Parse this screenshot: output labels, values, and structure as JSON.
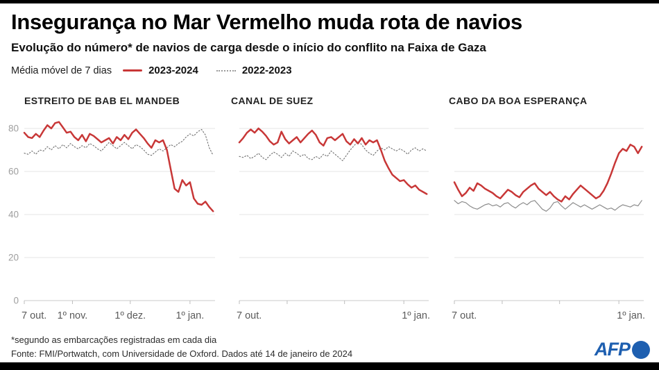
{
  "header": {
    "title": "Insegurança no Mar Vermelho muda rota de navios",
    "subtitle": "Evolução do número* de navios de carga desde o início do conflito na Faixa de Gaza",
    "legend": {
      "label": "Média móvel de 7 dias",
      "series": [
        {
          "name": "2023-2024",
          "color": "#c83737",
          "style": "solid"
        },
        {
          "name": "2022-2023",
          "color": "#9a9a9a",
          "style": "dotted"
        }
      ]
    }
  },
  "footer": {
    "note": "*segundo as embarcações registradas em cada dia",
    "source": "Fonte: FMI/Portwatch, com Universidade de Oxford. Dados até 14 de janeiro de 2024",
    "logo": "AFP"
  },
  "chart_data": [
    {
      "type": "line",
      "title": "ESTREITO DE BAB EL MANDEB",
      "x_unit": "days since 7 Oct",
      "day_step": 2,
      "x_max_day": 99,
      "y_gridlines": [
        0,
        20,
        40,
        60,
        80
      ],
      "ylim": [
        0,
        88
      ],
      "show_y_labels": true,
      "x_ticks": [
        {
          "day": 0,
          "label": "7 out.",
          "anchor": "start"
        },
        {
          "day": 25,
          "label": "1º nov.",
          "anchor": "middle"
        },
        {
          "day": 55,
          "label": "1º dez.",
          "anchor": "middle"
        },
        {
          "day": 86,
          "label": "1º jan.",
          "anchor": "middle"
        }
      ],
      "series": [
        {
          "name": "2022-2023",
          "color": "#6e6e6e",
          "dash": "1.6 2.6",
          "width": 1.1,
          "values": [
            68.5,
            68,
            69.5,
            68,
            70,
            69.5,
            71.5,
            70,
            72,
            70.5,
            72.5,
            71,
            73,
            71.5,
            70.5,
            72,
            71,
            73,
            72,
            70.5,
            69.5,
            71.5,
            73.5,
            72,
            70.5,
            72,
            73.5,
            72,
            70.5,
            72.5,
            71.5,
            70,
            68,
            67.5,
            69,
            70.5,
            69.5,
            71,
            72.5,
            71.5,
            73,
            74,
            76,
            77.5,
            76.5,
            78.5,
            79.5,
            77,
            71,
            67.5
          ]
        },
        {
          "name": "2023-2024",
          "color": "#c83737",
          "dash": null,
          "width": 2.5,
          "values": [
            78,
            76,
            75.5,
            77.5,
            76,
            79,
            81.5,
            80,
            82.5,
            83,
            80.5,
            78,
            78.5,
            76,
            74.5,
            77,
            74,
            77.5,
            76.5,
            75,
            73.5,
            74.5,
            75.5,
            73,
            76,
            74.5,
            77,
            75,
            78,
            79.5,
            77.5,
            75.5,
            73,
            71,
            74.5,
            73.5,
            74.5,
            70,
            61,
            52,
            50.5,
            56,
            53.5,
            55,
            47.5,
            45,
            44.5,
            46,
            43.5,
            41.5
          ]
        }
      ]
    },
    {
      "type": "line",
      "title": "CANAL DE SUEZ",
      "x_unit": "days since 7 Oct",
      "day_step": 2,
      "x_max_day": 99,
      "y_gridlines": [
        0,
        20,
        40,
        60,
        80
      ],
      "ylim": [
        0,
        88
      ],
      "show_y_labels": false,
      "x_ticks": [
        {
          "day": 0,
          "label": "7 out.",
          "anchor": "start"
        },
        {
          "day": 25,
          "label": "",
          "anchor": "middle"
        },
        {
          "day": 55,
          "label": "",
          "anchor": "middle"
        },
        {
          "day": 86,
          "label": "1º jan.",
          "anchor": "end"
        }
      ],
      "series": [
        {
          "name": "2022-2023",
          "color": "#6e6e6e",
          "dash": "1.6 2.6",
          "width": 1.1,
          "values": [
            67,
            66.5,
            67.5,
            66,
            67,
            68.5,
            66.5,
            65.5,
            67.5,
            69,
            68,
            66.5,
            68.5,
            67,
            69.5,
            68.5,
            67,
            68,
            66,
            65.5,
            67,
            66,
            68,
            67,
            69.5,
            68,
            66.5,
            65,
            67.5,
            70,
            72,
            74,
            72.5,
            70,
            68.5,
            67.5,
            69.5,
            71,
            70,
            71.5,
            70.5,
            69.5,
            70.5,
            69.5,
            68,
            70,
            71,
            69.5,
            70.5,
            69.5
          ]
        },
        {
          "name": "2023-2024",
          "color": "#c83737",
          "dash": null,
          "width": 2.5,
          "values": [
            73.5,
            75.5,
            78,
            79.5,
            78,
            80,
            78.5,
            76.5,
            74,
            72.5,
            73.5,
            78.5,
            75,
            73,
            74.5,
            76,
            73.5,
            75.5,
            77.5,
            79,
            77,
            73.5,
            72,
            75.5,
            76,
            74.5,
            76,
            77.5,
            74,
            72.5,
            75,
            73,
            75.5,
            72.5,
            74.5,
            73.5,
            74.5,
            70,
            65,
            61.5,
            58.5,
            57,
            55.5,
            56,
            54,
            52.5,
            53.5,
            51.5,
            50.5,
            49.5
          ]
        }
      ]
    },
    {
      "type": "line",
      "title": "CABO DA BOA ESPERANÇA",
      "x_unit": "days since 7 Oct",
      "day_step": 2,
      "x_max_day": 99,
      "y_gridlines": [
        0,
        20,
        40,
        60,
        80
      ],
      "ylim": [
        0,
        88
      ],
      "show_y_labels": false,
      "x_ticks": [
        {
          "day": 0,
          "label": "7 out.",
          "anchor": "start"
        },
        {
          "day": 25,
          "label": "",
          "anchor": "middle"
        },
        {
          "day": 55,
          "label": "",
          "anchor": "middle"
        },
        {
          "day": 86,
          "label": "1º jan.",
          "anchor": "end"
        }
      ],
      "series": [
        {
          "name": "2022-2023",
          "color": "#8c8c8c",
          "dash": null,
          "width": 1.2,
          "values": [
            46.5,
            45,
            46,
            45.5,
            44,
            43,
            42.5,
            43.5,
            44.5,
            45,
            44,
            44.5,
            43.5,
            45,
            45.5,
            44,
            43,
            44.5,
            45.5,
            44.5,
            46,
            46.5,
            44.5,
            42.5,
            41.5,
            43,
            45.5,
            46,
            44,
            42.5,
            44,
            45.5,
            44.5,
            43.5,
            44.5,
            43.5,
            42.5,
            43.5,
            44.5,
            43.5,
            42.5,
            43,
            42,
            43.5,
            44.5,
            44,
            43.5,
            44.5,
            44,
            46.5
          ]
        },
        {
          "name": "2023-2024",
          "color": "#c83737",
          "dash": null,
          "width": 2.5,
          "values": [
            55,
            51.5,
            48.5,
            50,
            52.5,
            51,
            54.5,
            53.5,
            52,
            51,
            50,
            48.5,
            47.5,
            49.5,
            51.5,
            50.5,
            49,
            48,
            50.5,
            52,
            53.5,
            54.5,
            52,
            50.5,
            49,
            50.5,
            48.5,
            47,
            46,
            48.5,
            47,
            49.5,
            51.5,
            53.5,
            52,
            50.5,
            49,
            47.5,
            48.5,
            51,
            54.5,
            59,
            64,
            68.5,
            70.5,
            69.5,
            72.5,
            71.5,
            68.5,
            71.5
          ]
        }
      ]
    }
  ]
}
